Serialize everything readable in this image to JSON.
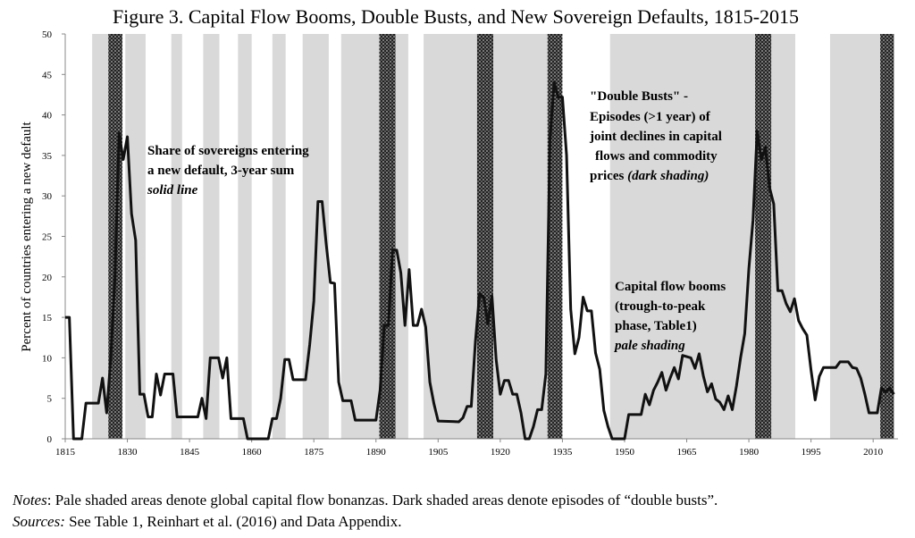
{
  "chart_data": {
    "type": "line",
    "title": "Figure 3. Capital Flow Booms, Double Busts, and New Sovereign Defaults, 1815-2015",
    "y_label": "Percent of countries entering a new default",
    "color": "#111111",
    "x": [
      1815,
      1816,
      1817,
      1818,
      1819,
      1820,
      1821,
      1822,
      1823,
      1824,
      1825,
      1826,
      1827,
      1828,
      1829,
      1830,
      1831,
      1832,
      1833,
      1834,
      1835,
      1836,
      1837,
      1838,
      1839,
      1840,
      1841,
      1842,
      1845,
      1847,
      1848,
      1849,
      1850,
      1852,
      1853,
      1854,
      1855,
      1858,
      1859,
      1864,
      1865,
      1866,
      1867,
      1868,
      1869,
      1870,
      1873,
      1874,
      1875,
      1876,
      1877,
      1878,
      1879,
      1880,
      1881,
      1882,
      1884,
      1885,
      1890,
      1891,
      1892,
      1893,
      1894,
      1895,
      1896,
      1897,
      1898,
      1899,
      1900,
      1901,
      1902,
      1903,
      1904,
      1905,
      1910,
      1911,
      1912,
      1913,
      1914,
      1915,
      1916,
      1917,
      1918,
      1919,
      1920,
      1921,
      1922,
      1923,
      1924,
      1925,
      1926,
      1927,
      1928,
      1929,
      1930,
      1931,
      1932,
      1933,
      1934,
      1935,
      1936,
      1937,
      1938,
      1939,
      1940,
      1941,
      1942,
      1943,
      1944,
      1945,
      1946,
      1947,
      1950,
      1951,
      1954,
      1955,
      1956,
      1957,
      1958,
      1959,
      1960,
      1961,
      1962,
      1963,
      1964,
      1966,
      1967,
      1968,
      1969,
      1970,
      1971,
      1972,
      1973,
      1974,
      1975,
      1976,
      1977,
      1978,
      1979,
      1980,
      1981,
      1982,
      1983,
      1984,
      1985,
      1986,
      1987,
      1988,
      1989,
      1990,
      1991,
      1992,
      1993,
      1994,
      1995,
      1996,
      1997,
      1998,
      2001,
      2002,
      2004,
      2005,
      2006,
      2007,
      2008,
      2009,
      2011,
      2012,
      2013,
      2014,
      2015
    ],
    "values": [
      15,
      15,
      0,
      0,
      0,
      4.4,
      4.4,
      4.4,
      4.4,
      7.5,
      3.2,
      10,
      20,
      37.7,
      34.5,
      37.3,
      27.8,
      24.5,
      5.5,
      5.5,
      2.7,
      2.7,
      8,
      5.4,
      8,
      8,
      8,
      2.7,
      2.7,
      2.7,
      5,
      2.5,
      10,
      10,
      7.5,
      10,
      2.5,
      2.5,
      0,
      0,
      2.5,
      2.5,
      5,
      9.8,
      9.8,
      7.3,
      7.3,
      11.6,
      17,
      29.3,
      29.3,
      24,
      19.3,
      19.2,
      7,
      4.7,
      4.7,
      2.3,
      2.3,
      6,
      14,
      14,
      23.3,
      23.3,
      20.5,
      14,
      20.9,
      14,
      14,
      16,
      13.8,
      7,
      4.3,
      2.2,
      2.1,
      2.6,
      4,
      4,
      12,
      17.9,
      17.5,
      14.2,
      17.6,
      9.8,
      5.5,
      7.2,
      7.2,
      5.5,
      5.5,
      3.2,
      0,
      0,
      1.5,
      3.6,
      3.6,
      8,
      37,
      44,
      42.2,
      42.2,
      35,
      16,
      10.5,
      12.5,
      17.5,
      15.8,
      15.8,
      10.6,
      8.6,
      3.5,
      1.5,
      0,
      0,
      3,
      3,
      5.5,
      4.2,
      6,
      7,
      8.2,
      6,
      7.5,
      8.8,
      7.4,
      10.3,
      10,
      8.7,
      10.5,
      7.8,
      5.8,
      6.8,
      4.9,
      4.5,
      3.6,
      5.3,
      3.6,
      6.5,
      10,
      13,
      21,
      27,
      38,
      34.5,
      36,
      31,
      29,
      18.3,
      18.3,
      16.7,
      15.7,
      17.3,
      14.6,
      13.6,
      12.8,
      8.5,
      4.8,
      7.7,
      8.8,
      8.8,
      9.5,
      9.5,
      8.8,
      8.7,
      7.5,
      5.5,
      3.2,
      3.2,
      6.3,
      5.8,
      6.3,
      5.5
    ],
    "booms": [
      [
        1821.5,
        1825.4
      ],
      [
        1829.5,
        1834.4
      ],
      [
        1840.6,
        1843.2
      ],
      [
        1848.3,
        1852.2
      ],
      [
        1856.7,
        1860
      ],
      [
        1865,
        1868.2
      ],
      [
        1872.3,
        1878.6
      ],
      [
        1881.6,
        1890.8
      ],
      [
        1894.7,
        1897.8
      ],
      [
        1901.5,
        1914.4
      ],
      [
        1918.3,
        1927.8
      ],
      [
        1927.8,
        1931.4
      ],
      [
        1946.5,
        1981.5
      ],
      [
        1985.4,
        1991.2
      ],
      [
        1999.6,
        2011.7
      ]
    ],
    "double_busts": [
      [
        1825.4,
        1828.8
      ],
      [
        1890.8,
        1894.7
      ],
      [
        1914.4,
        1918.3
      ],
      [
        1931.4,
        1935
      ],
      [
        1981.5,
        1985.4
      ],
      [
        2011.7,
        2015
      ]
    ],
    "xlim": [
      1815,
      2016
    ],
    "xticks": [
      1815,
      1830,
      1845,
      1860,
      1875,
      1890,
      1905,
      1920,
      1935,
      1950,
      1965,
      1980,
      1995,
      2010
    ],
    "ylim": [
      0,
      50
    ],
    "yticks": [
      0,
      5,
      10,
      15,
      20,
      25,
      30,
      35,
      40,
      45,
      50
    ],
    "annotations": [
      [
        "Share of sovereigns entering",
        "a new default, 3-year sum",
        "solid line"
      ],
      [
        "\"Double Busts\" -",
        "Episodes (>1 year) of",
        "joint declines in capital",
        "flows and commodity",
        "prices ",
        "(dark shading)"
      ],
      [
        "Capital flow booms",
        "(trough-to-peak",
        "phase, Table1)",
        "pale shading"
      ]
    ]
  },
  "notes": {
    "label": "Notes",
    "text": ": Pale shaded areas denote global capital flow bonanzas. Dark shaded areas denote episodes of “double busts”.",
    "sources_label": "Sources:",
    "sources_text": " See Table 1, Reinhart et al. (2016) and Data Appendix."
  }
}
